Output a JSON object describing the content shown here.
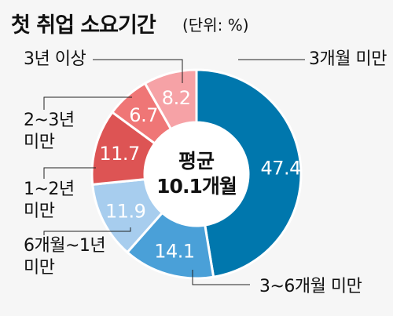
{
  "header": {
    "title": "첫 취업 소요기간",
    "unit": "(단위: %)"
  },
  "center": {
    "line1": "평균",
    "line2": "10.1개월"
  },
  "chart_data": {
    "type": "pie",
    "donut": true,
    "title": "첫 취업 소요기간",
    "unit": "%",
    "average_label": "평균 10.1개월",
    "slices": [
      {
        "label": "3개월 미만",
        "value": 47.4,
        "value_label": "47.4",
        "color": "#0077ad"
      },
      {
        "label": "3~6개월 미만",
        "value": 14.1,
        "value_label": "14.1",
        "color": "#4aa0d8"
      },
      {
        "label": "6개월~1년\n미만",
        "value": 11.9,
        "value_label": "11.9",
        "color": "#a7cdee"
      },
      {
        "label": "1~2년\n미만",
        "value": 11.7,
        "value_label": "11.7",
        "color": "#dd5454"
      },
      {
        "label": "2~3년\n미만",
        "value": 6.7,
        "value_label": "6.7",
        "color": "#ef7676"
      },
      {
        "label": "3년 이상",
        "value": 8.2,
        "value_label": "8.2",
        "color": "#f6a2a6"
      }
    ]
  }
}
